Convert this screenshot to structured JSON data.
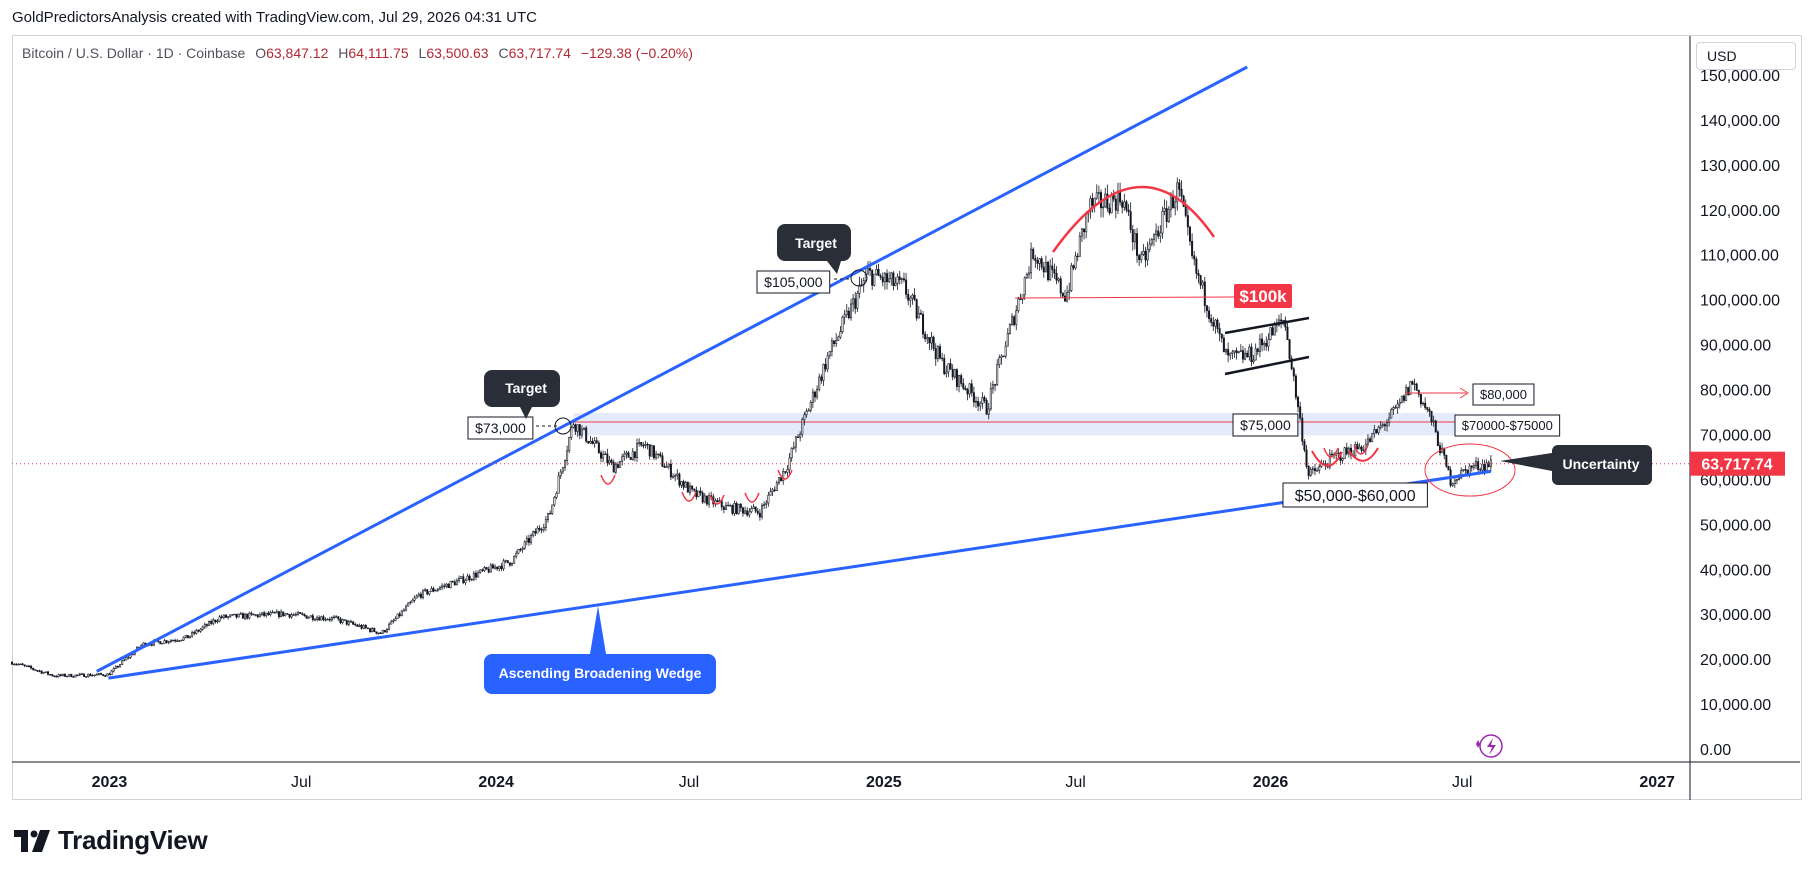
{
  "header": {
    "created_line": "GoldPredictorsAnalysis created with TradingView.com, Jul 29, 2026 04:31 UTC"
  },
  "symbol": {
    "name": "Bitcoin / U.S. Dollar · 1D · Coinbase",
    "open_label": "O",
    "open": "63,847.12",
    "high_label": "H",
    "high": "64,111.75",
    "low_label": "L",
    "low": "63,500.63",
    "close_label": "C",
    "close": "63,717.74",
    "change": "−129.38 (−0.20%)"
  },
  "currency": "USD",
  "brand": "TradingView",
  "colors": {
    "wedge_line": "#2962ff",
    "annotation_red": "#f23645",
    "price_tag": "#f23645",
    "candle_body": "#131722",
    "zone_fill": "#dbe5fb",
    "callout_dark": "#2a2e39",
    "callout_blue": "#2962ff"
  },
  "annotations": {
    "target1": "Target",
    "target2": "Target",
    "price_73k": "$73,000",
    "price_105k": "$105,000",
    "price_100k": "$100k",
    "price_75k": "$75,000",
    "price_80k": "$80,000",
    "zone_70_75": "$70000-$75000",
    "zone_50_60": "$50,000-$60,000",
    "uncertainty": "Uncertainty",
    "wedge": "Ascending Broadening Wedge",
    "last_price": "63,717.74"
  },
  "chart_data": {
    "type": "candlestick",
    "title": "Bitcoin / U.S. Dollar · 1D · Coinbase",
    "x_ticks": [
      "2023",
      "Jul",
      "2024",
      "Jul",
      "2025",
      "Jul",
      "2026",
      "Jul",
      "2027"
    ],
    "y_ticks": [
      "150,000.00",
      "140,000.00",
      "130,000.00",
      "120,000.00",
      "110,000.00",
      "100,000.00",
      "90,000.00",
      "80,000.00",
      "70,000.00",
      "60,000.00",
      "50,000.00",
      "40,000.00",
      "30,000.00",
      "20,000.00",
      "10,000.00",
      "0.00"
    ],
    "ylim": [
      0,
      153000
    ],
    "xlim": [
      "2022-10-01",
      "2027-02-01"
    ],
    "series": [
      {
        "name": "Bitcoin / U.S. Dollar",
        "x": [
          "2022-10-01",
          "2022-11-10",
          "2022-12-31",
          "2023-02-01",
          "2023-03-15",
          "2023-04-15",
          "2023-06-15",
          "2023-08-01",
          "2023-09-15",
          "2023-10-20",
          "2023-12-01",
          "2024-01-15",
          "2024-02-20",
          "2024-03-14",
          "2024-04-20",
          "2024-05-20",
          "2024-07-05",
          "2024-08-05",
          "2024-09-06",
          "2024-10-01",
          "2024-11-10",
          "2024-12-17",
          "2025-01-20",
          "2025-02-25",
          "2025-04-08",
          "2025-05-22",
          "2025-06-22",
          "2025-07-14",
          "2025-08-14",
          "2025-09-01",
          "2025-10-06",
          "2025-10-20",
          "2025-11-21",
          "2025-12-15",
          "2026-01-14",
          "2026-02-06",
          "2026-03-01",
          "2026-04-01",
          "2026-05-01",
          "2026-05-15",
          "2026-06-01",
          "2026-06-20",
          "2026-07-10",
          "2026-07-28"
        ],
        "values": [
          19500,
          16500,
          16800,
          23500,
          25000,
          29500,
          30300,
          29200,
          26000,
          34500,
          38000,
          42000,
          52000,
          73000,
          63000,
          68000,
          57000,
          54000,
          53000,
          63000,
          88000,
          106000,
          103000,
          86000,
          76000,
          111000,
          101000,
          121000,
          123000,
          108000,
          125000,
          108000,
          87000,
          88000,
          96000,
          61000,
          65000,
          68000,
          76000,
          82000,
          74000,
          60000,
          63000,
          63717.74
        ]
      }
    ],
    "levels": [
      {
        "label": "$73,000",
        "value": 73000
      },
      {
        "label": "$105,000",
        "value": 105000
      },
      {
        "label": "$100k",
        "value": 101000
      },
      {
        "label": "$75,000",
        "value": 73000
      },
      {
        "label": "$80,000",
        "value": 81000
      },
      {
        "label": "$70000-$75000",
        "value_low": 70000,
        "value_high": 75000
      },
      {
        "label": "$50,000-$60,000",
        "value_low": 50000,
        "value_high": 60000
      }
    ],
    "trendlines": [
      {
        "name": "wedge-upper",
        "from": [
          "2022-12-20",
          17500
        ],
        "to": [
          "2025-12-10",
          152000
        ]
      },
      {
        "name": "wedge-lower",
        "from": [
          "2022-12-31",
          16000
        ],
        "to": [
          "2026-07-28",
          62000
        ]
      }
    ],
    "grid": false
  }
}
